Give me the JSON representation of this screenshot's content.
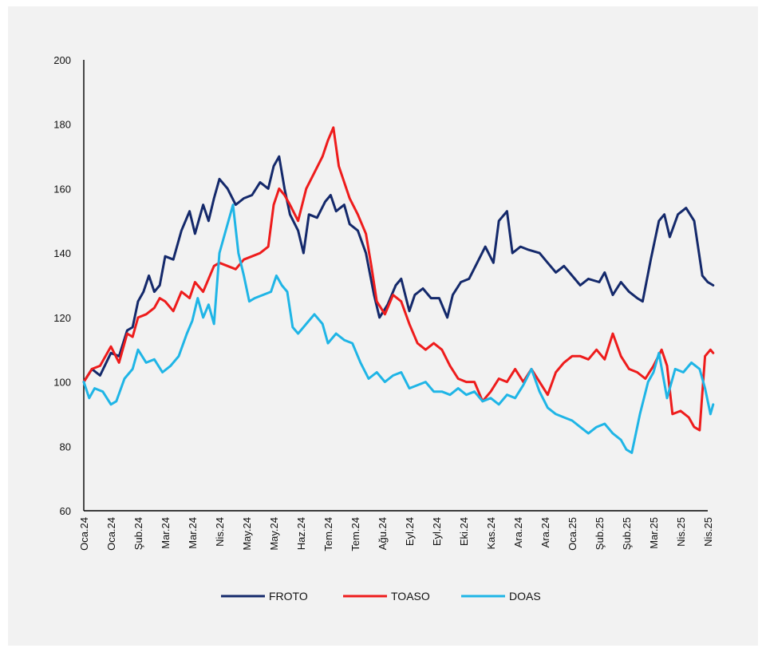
{
  "chart_data": {
    "type": "line",
    "title": "",
    "xlabel": "",
    "ylabel": "",
    "ylim": [
      60,
      200
    ],
    "yticks": [
      60,
      80,
      100,
      120,
      140,
      160,
      180,
      200
    ],
    "x_tick_labels": [
      "Oca.24",
      "Oca.24",
      "Şub.24",
      "Mar.24",
      "Mar.24",
      "Nis.24",
      "May.24",
      "May.24",
      "Haz.24",
      "Tem.24",
      "Tem.24",
      "Ağu.24",
      "Eyl.24",
      "Eyl.24",
      "Eki.24",
      "Kas.24",
      "Ara.24",
      "Ara.24",
      "Oca.25",
      "Şub.25",
      "Şub.25",
      "Mar.25",
      "Nis.25",
      "Nis.25"
    ],
    "x_index_range": [
      0,
      23
    ],
    "grid": false,
    "legend_position": "bottom",
    "series": [
      {
        "name": "FROTO",
        "color": "#14296b",
        "points": [
          [
            0,
            100
          ],
          [
            0.3,
            104
          ],
          [
            0.6,
            102
          ],
          [
            1,
            109
          ],
          [
            1.3,
            108
          ],
          [
            1.6,
            116
          ],
          [
            1.8,
            117
          ],
          [
            2,
            125
          ],
          [
            2.2,
            128
          ],
          [
            2.4,
            133
          ],
          [
            2.6,
            128
          ],
          [
            2.8,
            130
          ],
          [
            3,
            139
          ],
          [
            3.3,
            138
          ],
          [
            3.6,
            147
          ],
          [
            3.9,
            153
          ],
          [
            4.1,
            146
          ],
          [
            4.4,
            155
          ],
          [
            4.6,
            150
          ],
          [
            4.8,
            157
          ],
          [
            5,
            163
          ],
          [
            5.3,
            160
          ],
          [
            5.6,
            155
          ],
          [
            5.9,
            157
          ],
          [
            6.2,
            158
          ],
          [
            6.5,
            162
          ],
          [
            6.8,
            160
          ],
          [
            7,
            167
          ],
          [
            7.2,
            170
          ],
          [
            7.4,
            160
          ],
          [
            7.6,
            152
          ],
          [
            7.9,
            147
          ],
          [
            8.1,
            140
          ],
          [
            8.3,
            152
          ],
          [
            8.6,
            151
          ],
          [
            8.9,
            156
          ],
          [
            9.1,
            158
          ],
          [
            9.3,
            153
          ],
          [
            9.6,
            155
          ],
          [
            9.8,
            149
          ],
          [
            10.1,
            147
          ],
          [
            10.4,
            140
          ],
          [
            10.7,
            127
          ],
          [
            10.9,
            120
          ],
          [
            11.2,
            124
          ],
          [
            11.5,
            130
          ],
          [
            11.7,
            132
          ],
          [
            12,
            122
          ],
          [
            12.2,
            127
          ],
          [
            12.5,
            129
          ],
          [
            12.8,
            126
          ],
          [
            13.1,
            126
          ],
          [
            13.4,
            120
          ],
          [
            13.6,
            127
          ],
          [
            13.9,
            131
          ],
          [
            14.2,
            132
          ],
          [
            14.5,
            137
          ],
          [
            14.8,
            142
          ],
          [
            15.1,
            137
          ],
          [
            15.3,
            150
          ],
          [
            15.6,
            153
          ],
          [
            15.8,
            140
          ],
          [
            16.1,
            142
          ],
          [
            16.4,
            141
          ],
          [
            16.8,
            140
          ],
          [
            17.1,
            137
          ],
          [
            17.4,
            134
          ],
          [
            17.7,
            136
          ],
          [
            18,
            133
          ],
          [
            18.3,
            130
          ],
          [
            18.6,
            132
          ],
          [
            19,
            131
          ],
          [
            19.2,
            134
          ],
          [
            19.5,
            127
          ],
          [
            19.8,
            131
          ],
          [
            20.1,
            128
          ],
          [
            20.4,
            126
          ],
          [
            20.6,
            125
          ],
          [
            20.9,
            138
          ],
          [
            21.2,
            150
          ],
          [
            21.4,
            152
          ],
          [
            21.6,
            145
          ],
          [
            21.9,
            152
          ],
          [
            22.2,
            154
          ],
          [
            22.5,
            150
          ],
          [
            22.8,
            133
          ],
          [
            23,
            131
          ],
          [
            23.2,
            130
          ]
        ]
      },
      {
        "name": "TOASO",
        "color": "#ee1c1c",
        "points": [
          [
            0,
            100
          ],
          [
            0.3,
            104
          ],
          [
            0.6,
            105
          ],
          [
            1,
            111
          ],
          [
            1.3,
            106
          ],
          [
            1.6,
            115
          ],
          [
            1.8,
            114
          ],
          [
            2,
            120
          ],
          [
            2.3,
            121
          ],
          [
            2.6,
            123
          ],
          [
            2.8,
            126
          ],
          [
            3,
            125
          ],
          [
            3.3,
            122
          ],
          [
            3.6,
            128
          ],
          [
            3.9,
            126
          ],
          [
            4.1,
            131
          ],
          [
            4.4,
            128
          ],
          [
            4.6,
            132
          ],
          [
            4.8,
            136
          ],
          [
            5,
            137
          ],
          [
            5.3,
            136
          ],
          [
            5.6,
            135
          ],
          [
            5.9,
            138
          ],
          [
            6.2,
            139
          ],
          [
            6.5,
            140
          ],
          [
            6.8,
            142
          ],
          [
            7,
            155
          ],
          [
            7.2,
            160
          ],
          [
            7.4,
            158
          ],
          [
            7.6,
            155
          ],
          [
            7.9,
            150
          ],
          [
            8.2,
            160
          ],
          [
            8.5,
            165
          ],
          [
            8.8,
            170
          ],
          [
            9,
            175
          ],
          [
            9.2,
            179
          ],
          [
            9.4,
            167
          ],
          [
            9.6,
            162
          ],
          [
            9.8,
            157
          ],
          [
            10.1,
            152
          ],
          [
            10.4,
            146
          ],
          [
            10.6,
            136
          ],
          [
            10.8,
            125
          ],
          [
            11.1,
            121
          ],
          [
            11.4,
            127
          ],
          [
            11.7,
            125
          ],
          [
            12,
            118
          ],
          [
            12.3,
            112
          ],
          [
            12.6,
            110
          ],
          [
            12.9,
            112
          ],
          [
            13.2,
            110
          ],
          [
            13.5,
            105
          ],
          [
            13.8,
            101
          ],
          [
            14.1,
            100
          ],
          [
            14.4,
            100
          ],
          [
            14.7,
            94
          ],
          [
            15,
            97
          ],
          [
            15.3,
            101
          ],
          [
            15.6,
            100
          ],
          [
            15.9,
            104
          ],
          [
            16.2,
            100
          ],
          [
            16.5,
            104
          ],
          [
            16.8,
            100
          ],
          [
            17.1,
            96
          ],
          [
            17.4,
            103
          ],
          [
            17.7,
            106
          ],
          [
            18,
            108
          ],
          [
            18.3,
            108
          ],
          [
            18.6,
            107
          ],
          [
            18.9,
            110
          ],
          [
            19.2,
            107
          ],
          [
            19.5,
            115
          ],
          [
            19.8,
            108
          ],
          [
            20.1,
            104
          ],
          [
            20.4,
            103
          ],
          [
            20.7,
            101
          ],
          [
            21,
            105
          ],
          [
            21.3,
            110
          ],
          [
            21.5,
            105
          ],
          [
            21.7,
            90
          ],
          [
            22,
            91
          ],
          [
            22.3,
            89
          ],
          [
            22.5,
            86
          ],
          [
            22.7,
            85
          ],
          [
            22.9,
            108
          ],
          [
            23.1,
            110
          ],
          [
            23.2,
            109
          ]
        ]
      },
      {
        "name": "DOAS",
        "color": "#1fb5e6",
        "points": [
          [
            0,
            100
          ],
          [
            0.2,
            95
          ],
          [
            0.4,
            98
          ],
          [
            0.7,
            97
          ],
          [
            1,
            93
          ],
          [
            1.2,
            94
          ],
          [
            1.5,
            101
          ],
          [
            1.8,
            104
          ],
          [
            2,
            110
          ],
          [
            2.3,
            106
          ],
          [
            2.6,
            107
          ],
          [
            2.9,
            103
          ],
          [
            3.2,
            105
          ],
          [
            3.5,
            108
          ],
          [
            3.8,
            115
          ],
          [
            4,
            119
          ],
          [
            4.2,
            126
          ],
          [
            4.4,
            120
          ],
          [
            4.6,
            124
          ],
          [
            4.8,
            118
          ],
          [
            5,
            140
          ],
          [
            5.2,
            146
          ],
          [
            5.5,
            155
          ],
          [
            5.7,
            140
          ],
          [
            5.9,
            133
          ],
          [
            6.1,
            125
          ],
          [
            6.3,
            126
          ],
          [
            6.6,
            127
          ],
          [
            6.9,
            128
          ],
          [
            7.1,
            133
          ],
          [
            7.3,
            130
          ],
          [
            7.5,
            128
          ],
          [
            7.7,
            117
          ],
          [
            7.9,
            115
          ],
          [
            8.2,
            118
          ],
          [
            8.5,
            121
          ],
          [
            8.8,
            118
          ],
          [
            9,
            112
          ],
          [
            9.3,
            115
          ],
          [
            9.6,
            113
          ],
          [
            9.9,
            112
          ],
          [
            10.2,
            106
          ],
          [
            10.5,
            101
          ],
          [
            10.8,
            103
          ],
          [
            11.1,
            100
          ],
          [
            11.4,
            102
          ],
          [
            11.7,
            103
          ],
          [
            12,
            98
          ],
          [
            12.3,
            99
          ],
          [
            12.6,
            100
          ],
          [
            12.9,
            97
          ],
          [
            13.2,
            97
          ],
          [
            13.5,
            96
          ],
          [
            13.8,
            98
          ],
          [
            14.1,
            96
          ],
          [
            14.4,
            97
          ],
          [
            14.7,
            94
          ],
          [
            15,
            95
          ],
          [
            15.3,
            93
          ],
          [
            15.6,
            96
          ],
          [
            15.9,
            95
          ],
          [
            16.2,
            99
          ],
          [
            16.5,
            104
          ],
          [
            16.8,
            97
          ],
          [
            17.1,
            92
          ],
          [
            17.4,
            90
          ],
          [
            17.7,
            89
          ],
          [
            18,
            88
          ],
          [
            18.3,
            86
          ],
          [
            18.6,
            84
          ],
          [
            18.9,
            86
          ],
          [
            19.2,
            87
          ],
          [
            19.5,
            84
          ],
          [
            19.8,
            82
          ],
          [
            20,
            79
          ],
          [
            20.2,
            78
          ],
          [
            20.5,
            90
          ],
          [
            20.8,
            100
          ],
          [
            21,
            103
          ],
          [
            21.2,
            109
          ],
          [
            21.5,
            95
          ],
          [
            21.8,
            104
          ],
          [
            22.1,
            103
          ],
          [
            22.4,
            106
          ],
          [
            22.7,
            104
          ],
          [
            22.9,
            98
          ],
          [
            23.1,
            90
          ],
          [
            23.2,
            93
          ]
        ]
      }
    ]
  }
}
